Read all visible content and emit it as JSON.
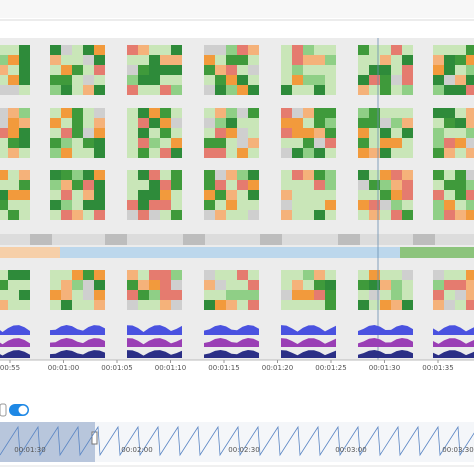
{
  "timeline": {
    "labels": [
      "00:55",
      "00:01:00",
      "00:01:05",
      "00:01:10",
      "00:01:15",
      "00:01:20",
      "00:01:25",
      "00:01:30",
      "00:01:35"
    ]
  },
  "overview": {
    "labels": [
      "00:01:30",
      "00:02:00",
      "00:02:30",
      "00:03:00",
      "00:03:30"
    ]
  }
}
